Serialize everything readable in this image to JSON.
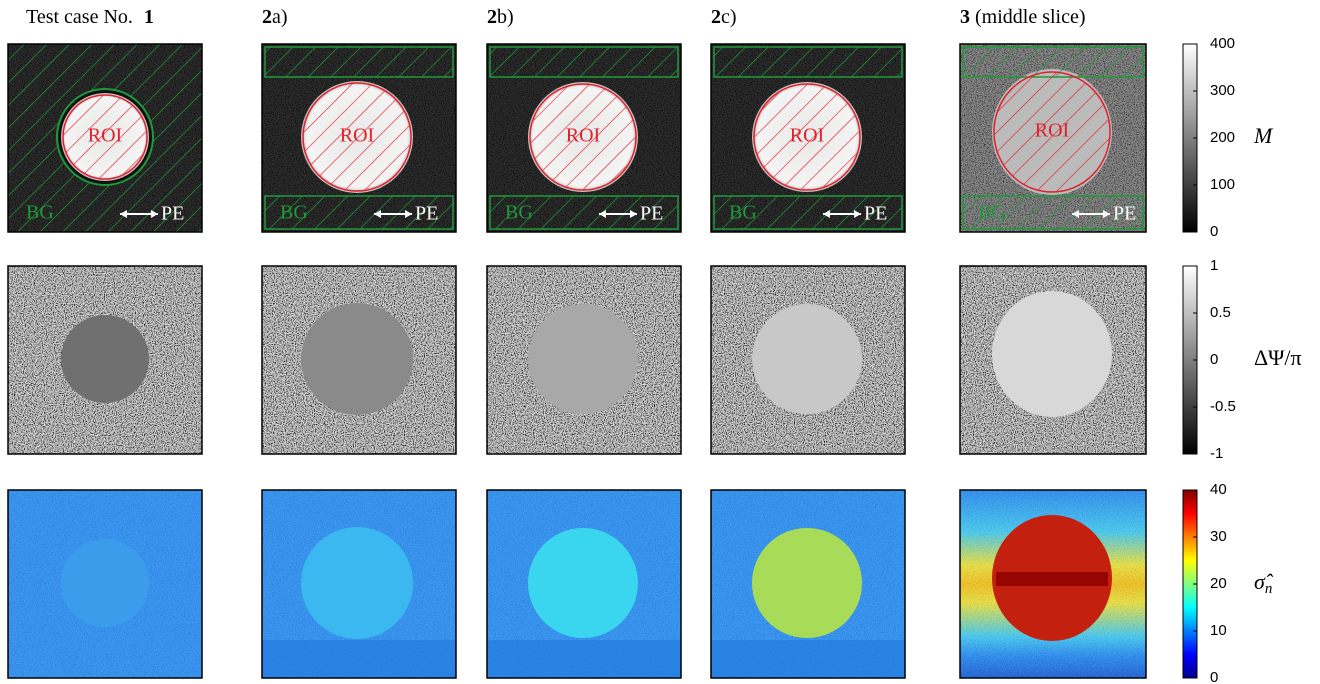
{
  "columns": [
    {
      "prefix": "Test case No.",
      "number": "1"
    },
    {
      "number": "2",
      "suffix": "a)"
    },
    {
      "number": "2",
      "suffix": "b)"
    },
    {
      "number": "2",
      "suffix": "c)"
    },
    {
      "number": "3",
      "suffix": "(middle slice)"
    }
  ],
  "panel_labels": {
    "roi": "ROI",
    "bg": "BG",
    "pe": "PE"
  },
  "rows": [
    {
      "label": "M",
      "ticks": [
        "0",
        "100",
        "200",
        "300",
        "400"
      ]
    },
    {
      "label": "ΔΨ/π",
      "ticks": [
        "-1",
        "-0.5",
        "0",
        "0.5",
        "1"
      ]
    },
    {
      "label": "σ̂",
      "subscript": "n",
      "ticks": [
        "0",
        "10",
        "20",
        "30",
        "40"
      ]
    }
  ]
}
